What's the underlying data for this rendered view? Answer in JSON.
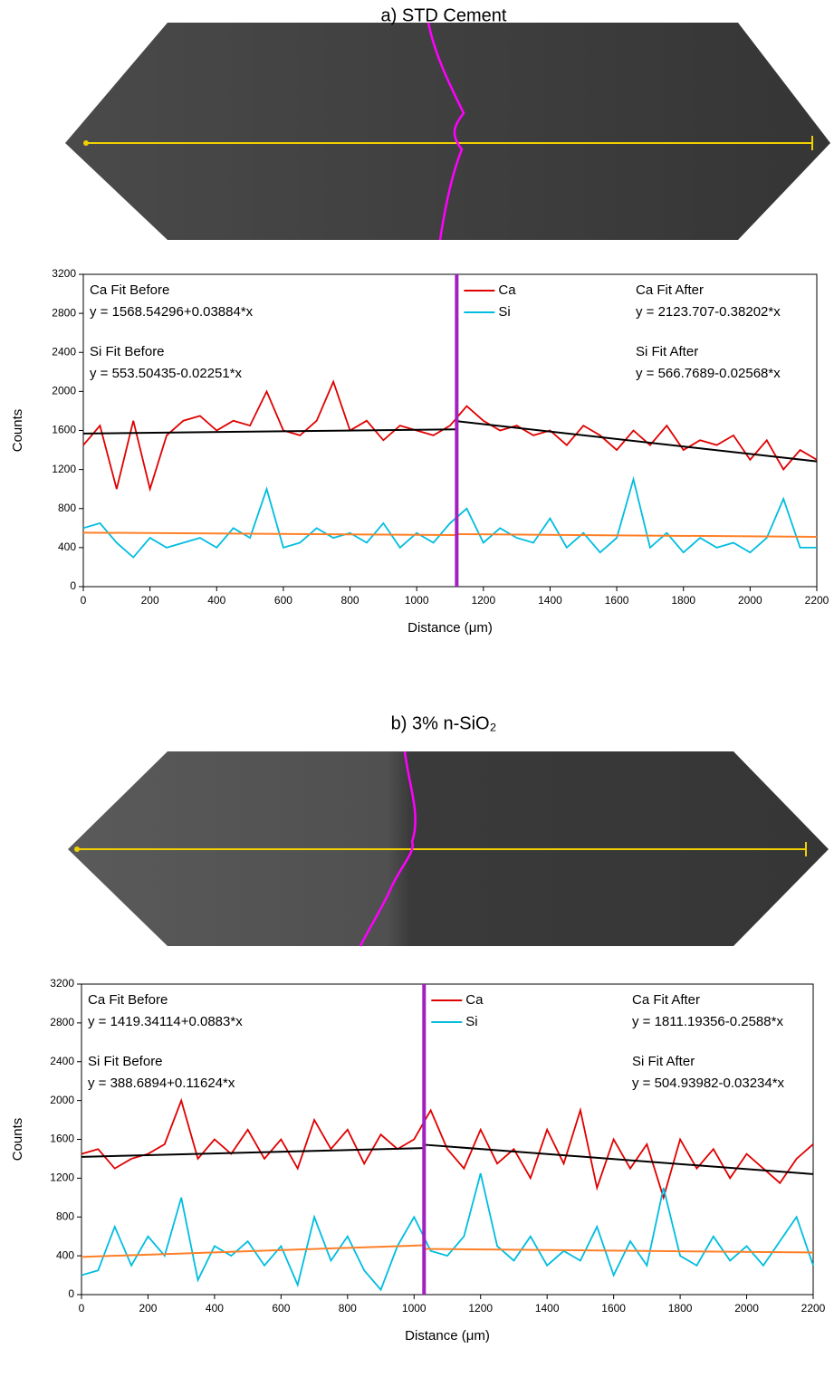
{
  "chart_data": [
    {
      "type": "line",
      "title": "a) STD Cement",
      "x_label": "Distance (μm)",
      "y_label": "Counts",
      "xlim": [
        0,
        2200
      ],
      "xticks": [
        0,
        200,
        400,
        600,
        800,
        1000,
        1200,
        1400,
        1600,
        1800,
        2000,
        2200
      ],
      "ylim": [
        0,
        3200
      ],
      "yticks": [
        0,
        400,
        800,
        1200,
        1600,
        2000,
        2400,
        2800,
        3200
      ],
      "x": [
        0,
        50,
        100,
        150,
        200,
        250,
        300,
        350,
        400,
        450,
        500,
        550,
        600,
        650,
        700,
        750,
        800,
        850,
        900,
        950,
        1000,
        1050,
        1100,
        1150,
        1200,
        1250,
        1300,
        1350,
        1400,
        1450,
        1500,
        1550,
        1600,
        1650,
        1700,
        1750,
        1800,
        1850,
        1900,
        1950,
        2000,
        2050,
        2100,
        2150,
        2200
      ],
      "series": [
        {
          "name": "Ca",
          "color": "#e00000",
          "values": [
            1450,
            1650,
            1000,
            1700,
            1000,
            1550,
            1700,
            1750,
            1600,
            1700,
            1650,
            2000,
            1600,
            1550,
            1700,
            2100,
            1600,
            1700,
            1500,
            1650,
            1600,
            1550,
            1650,
            1850,
            1700,
            1600,
            1650,
            1550,
            1600,
            1450,
            1650,
            1550,
            1400,
            1600,
            1450,
            1650,
            1400,
            1500,
            1450,
            1550,
            1300,
            1500,
            1200,
            1400,
            1300
          ]
        },
        {
          "name": "Si",
          "color": "#00bde0",
          "values": [
            600,
            650,
            450,
            300,
            500,
            400,
            450,
            500,
            400,
            600,
            500,
            1000,
            400,
            450,
            600,
            500,
            550,
            450,
            650,
            400,
            550,
            450,
            650,
            800,
            450,
            600,
            500,
            450,
            700,
            400,
            550,
            350,
            500,
            1100,
            400,
            550,
            350,
            500,
            400,
            450,
            350,
            500,
            900,
            400,
            400
          ]
        }
      ],
      "boundary": 1120,
      "boundary_color": "#a020c0",
      "fits": [
        {
          "label": "Ca Fit Before",
          "equation": "y = 1568.54296+0.03884*x",
          "x": [
            0,
            1120
          ],
          "values": [
            1568.5,
            1612.0
          ],
          "color": "#000000"
        },
        {
          "label": "Si Fit Before",
          "equation": "y = 553.50435-0.02251*x",
          "x": [
            0,
            1120
          ],
          "values": [
            553.5,
            528.3
          ],
          "color": "#ff7f27"
        },
        {
          "label": "Ca Fit After",
          "equation": "y = 2123.707-0.38202*x",
          "x": [
            1120,
            2200
          ],
          "values": [
            1695.8,
            1283.3
          ],
          "color": "#000000"
        },
        {
          "label": "Si Fit After",
          "equation": "y = 566.7689-0.02568*x",
          "x": [
            1120,
            2200
          ],
          "values": [
            538.0,
            510.3
          ],
          "color": "#ff7f27"
        }
      ]
    },
    {
      "type": "line",
      "title": "b) 3% n-SiO₂",
      "x_label": "Distance (μm)",
      "y_label": "Counts",
      "xlim": [
        0,
        2200
      ],
      "xticks": [
        0,
        200,
        400,
        600,
        800,
        1000,
        1200,
        1400,
        1600,
        1800,
        2000,
        2200
      ],
      "ylim": [
        0,
        3200
      ],
      "yticks": [
        0,
        400,
        800,
        1200,
        1600,
        2000,
        2400,
        2800,
        3200
      ],
      "x": [
        0,
        50,
        100,
        150,
        200,
        250,
        300,
        350,
        400,
        450,
        500,
        550,
        600,
        650,
        700,
        750,
        800,
        850,
        900,
        950,
        1000,
        1050,
        1100,
        1150,
        1200,
        1250,
        1300,
        1350,
        1400,
        1450,
        1500,
        1550,
        1600,
        1650,
        1700,
        1750,
        1800,
        1850,
        1900,
        1950,
        2000,
        2050,
        2100,
        2150,
        2200
      ],
      "series": [
        {
          "name": "Ca",
          "color": "#e00000",
          "values": [
            1450,
            1500,
            1300,
            1400,
            1450,
            1550,
            2000,
            1400,
            1600,
            1450,
            1700,
            1400,
            1600,
            1300,
            1800,
            1500,
            1700,
            1350,
            1650,
            1500,
            1600,
            1900,
            1500,
            1300,
            1700,
            1350,
            1500,
            1200,
            1700,
            1350,
            1900,
            1100,
            1600,
            1300,
            1550,
            1000,
            1600,
            1300,
            1500,
            1200,
            1450,
            1300,
            1150,
            1400,
            1550
          ]
        },
        {
          "name": "Si",
          "color": "#00bde0",
          "values": [
            200,
            250,
            700,
            300,
            600,
            400,
            1000,
            150,
            500,
            400,
            550,
            300,
            500,
            100,
            800,
            350,
            600,
            250,
            50,
            500,
            800,
            450,
            400,
            600,
            1250,
            500,
            350,
            600,
            300,
            450,
            350,
            700,
            200,
            550,
            300,
            1100,
            400,
            300,
            600,
            350,
            500,
            300,
            550,
            800,
            300
          ]
        }
      ],
      "boundary": 1030,
      "boundary_color": "#a020c0",
      "fits": [
        {
          "label": "Ca Fit Before",
          "equation": "y = 1419.34114+0.0883*x",
          "x": [
            0,
            1030
          ],
          "values": [
            1419.3,
            1510.3
          ],
          "color": "#000000"
        },
        {
          "label": "Si Fit Before",
          "equation": "y = 388.6894+0.11624*x",
          "x": [
            0,
            1030
          ],
          "values": [
            388.7,
            508.4
          ],
          "color": "#ff7f27"
        },
        {
          "label": "Ca Fit After",
          "equation": "y = 1811.19356-0.2588*x",
          "x": [
            1030,
            2200
          ],
          "values": [
            1544.6,
            1241.8
          ],
          "color": "#000000"
        },
        {
          "label": "Si Fit After",
          "equation": "y = 504.93982-0.03234*x",
          "x": [
            1030,
            2200
          ],
          "values": [
            471.6,
            433.8
          ],
          "color": "#ff7f27"
        }
      ]
    }
  ]
}
